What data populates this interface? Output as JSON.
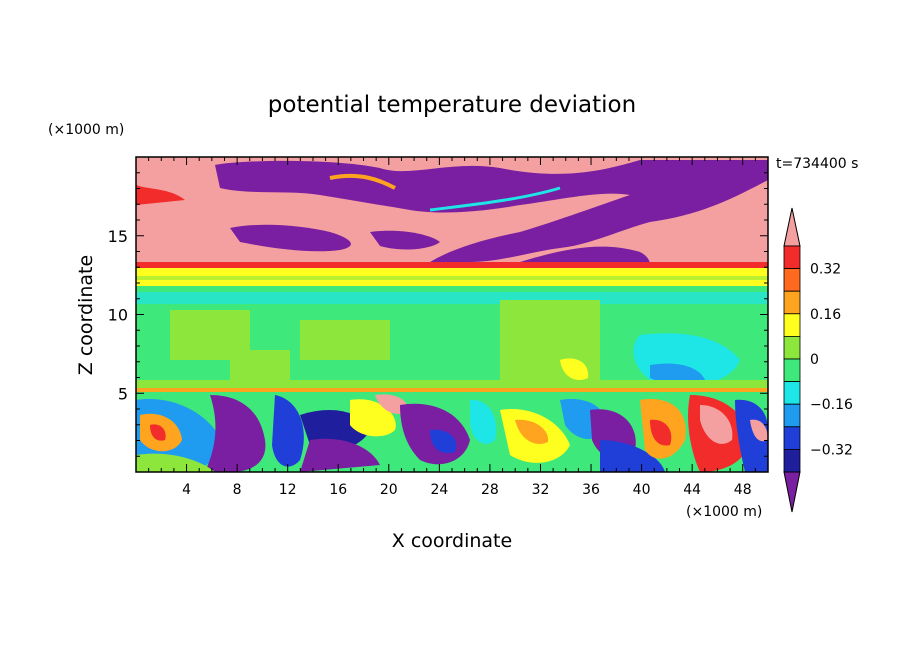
{
  "chart_data": {
    "type": "heatmap",
    "title": "potential temperature deviation",
    "xlabel": "X coordinate",
    "ylabel": "Z coordinate",
    "x_unit": "(×1000 m)",
    "y_unit": "(×1000 m)",
    "time_label": "t=734400 s",
    "xlim": [
      0,
      50
    ],
    "ylim": [
      0,
      20
    ],
    "x_ticks": [
      4,
      8,
      12,
      16,
      20,
      24,
      28,
      32,
      36,
      40,
      44,
      48
    ],
    "y_ticks": [
      5,
      10,
      15
    ],
    "colorbar": {
      "tick_labels": [
        "0.32",
        "0.16",
        "0",
        "-0.16",
        "-0.32"
      ],
      "tick_values": [
        0.32,
        0.16,
        0,
        -0.16,
        -0.32
      ],
      "levels": [
        -0.4,
        -0.32,
        -0.24,
        -0.16,
        -0.08,
        0,
        0.08,
        0.16,
        0.24,
        0.32,
        0.4
      ],
      "colors": [
        "#7a1fa2",
        "#1f1f9e",
        "#1f3fd8",
        "#1f9cf0",
        "#1fe6e6",
        "#3fe87a",
        "#8ce63c",
        "#ffff1f",
        "#ffa41f",
        "#ff6a1f",
        "#f22b2b",
        "#f5a0a0"
      ],
      "extend": "both"
    },
    "layers": [
      {
        "z": [
          13.2,
          20
        ],
        "pattern": "pink aloft with large purple patches"
      },
      {
        "z": [
          11.6,
          13.2
        ],
        "pattern": "yellow/orange band"
      },
      {
        "z": [
          5.2,
          11.6
        ],
        "pattern": "green with cyan patches"
      },
      {
        "z": [
          0,
          5.2
        ],
        "pattern": "mixed turbulent: purple, blue, cyan, yellow, orange, red"
      }
    ]
  }
}
